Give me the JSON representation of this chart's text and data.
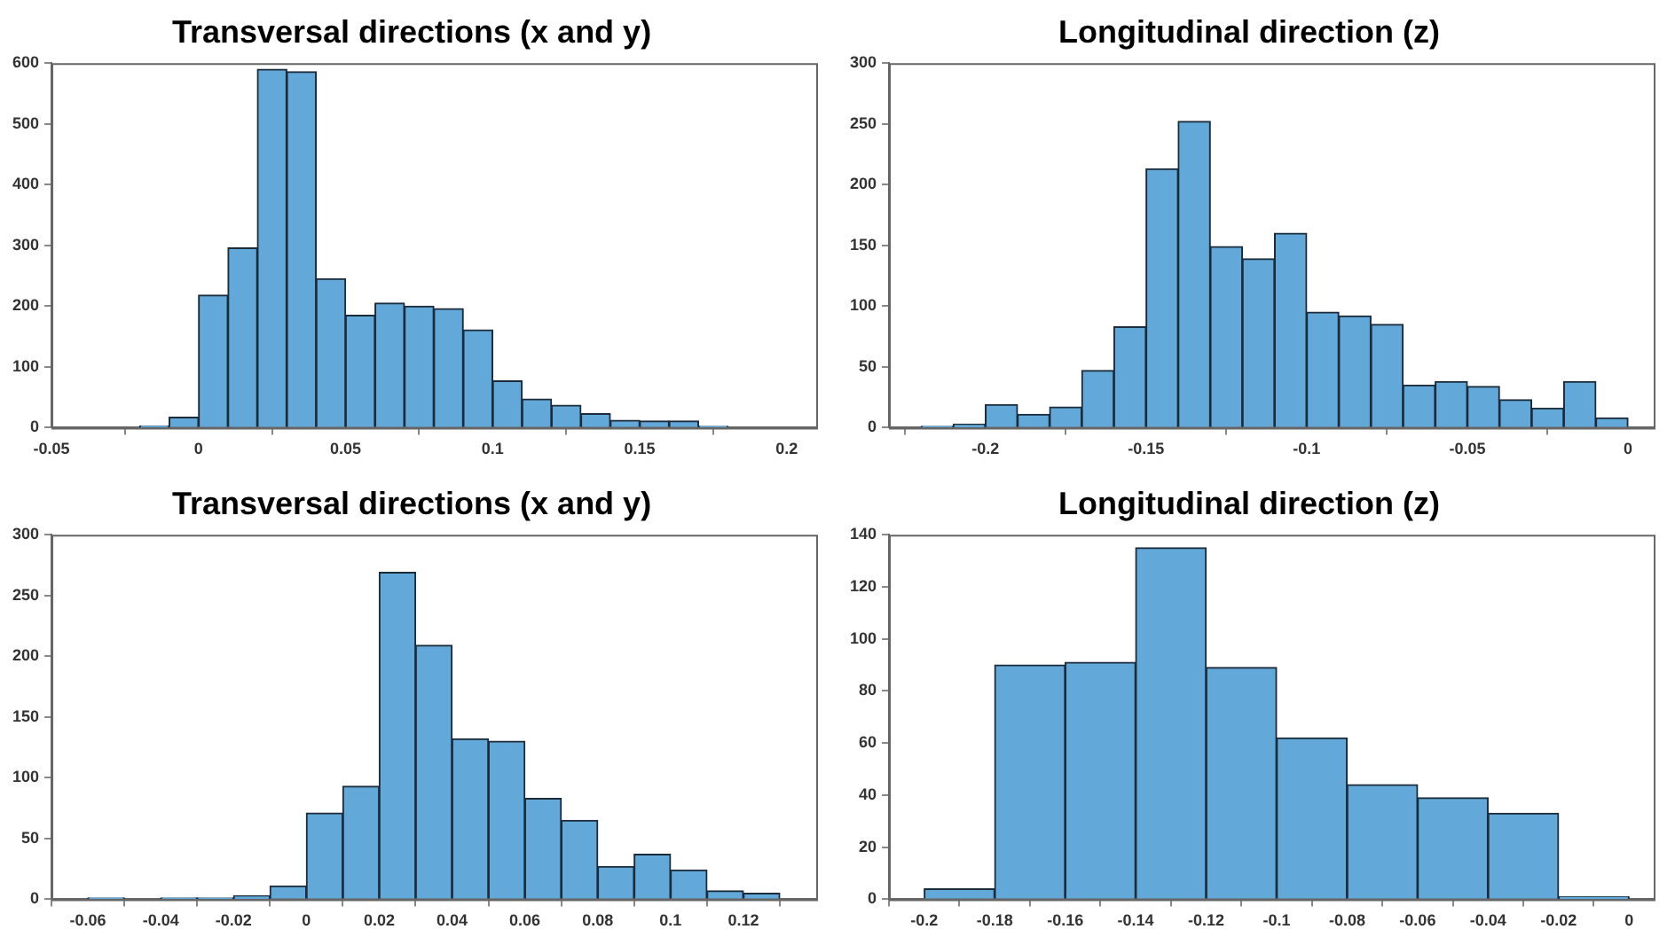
{
  "chart_data": [
    {
      "type": "histogram",
      "title": "Transversal directions (x and y)",
      "color": "#62a8d8",
      "bins": [
        -0.02,
        -0.01,
        0,
        0.01,
        0.02,
        0.03,
        0.04,
        0.05,
        0.06,
        0.07,
        0.08,
        0.09,
        0.1,
        0.11,
        0.12,
        0.13,
        0.14,
        0.15,
        0.16,
        0.17,
        0.18
      ],
      "values": [
        3,
        17,
        218,
        296,
        590,
        586,
        245,
        185,
        205,
        200,
        196,
        161,
        77,
        47,
        37,
        23,
        12,
        11,
        11,
        2
      ],
      "xlim": [
        -0.05,
        0.21
      ],
      "xticks": [
        -0.05,
        0,
        0.05,
        0.1,
        0.15,
        0.2
      ],
      "ylim": [
        0,
        600
      ],
      "yticks": [
        0,
        100,
        200,
        300,
        400,
        500,
        600
      ],
      "grid": false,
      "legend": false
    },
    {
      "type": "histogram",
      "title": "Longitudinal direction (z)",
      "color": "#62a8d8",
      "bins": [
        -0.22,
        -0.21,
        -0.2,
        -0.19,
        -0.18,
        -0.17,
        -0.16,
        -0.15,
        -0.14,
        -0.13,
        -0.12,
        -0.11,
        -0.1,
        -0.09,
        -0.08,
        -0.07,
        -0.06,
        -0.05,
        -0.04,
        -0.03,
        -0.02,
        -0.01,
        0
      ],
      "values": [
        1,
        3,
        19,
        11,
        17,
        47,
        83,
        213,
        252,
        149,
        139,
        160,
        95,
        92,
        85,
        35,
        38,
        34,
        23,
        16,
        38,
        8
      ],
      "xlim": [
        -0.23,
        0.008
      ],
      "xticks": [
        -0.2,
        -0.15,
        -0.1,
        -0.05,
        0
      ],
      "ylim": [
        0,
        300
      ],
      "yticks": [
        0,
        50,
        100,
        150,
        200,
        250,
        300
      ],
      "grid": false,
      "legend": false
    },
    {
      "type": "histogram",
      "title": "Transversal directions (x and y)",
      "color": "#62a8d8",
      "bins": [
        -0.06,
        -0.05,
        -0.04,
        -0.03,
        -0.02,
        -0.01,
        0,
        0.01,
        0.02,
        0.03,
        0.04,
        0.05,
        0.06,
        0.07,
        0.08,
        0.09,
        0.1,
        0.11,
        0.12,
        0.13
      ],
      "values": [
        1,
        0,
        1,
        1,
        3,
        11,
        71,
        93,
        269,
        209,
        132,
        130,
        83,
        65,
        27,
        37,
        24,
        7,
        5
      ],
      "xlim": [
        -0.07,
        0.14
      ],
      "xticks": [
        -0.06,
        -0.04,
        -0.02,
        0,
        0.02,
        0.04,
        0.06,
        0.08,
        0.1,
        0.12
      ],
      "ylim": [
        0,
        300
      ],
      "yticks": [
        0,
        50,
        100,
        150,
        200,
        250,
        300
      ],
      "grid": false,
      "legend": false
    },
    {
      "type": "histogram",
      "title": "Longitudinal direction (z)",
      "color": "#62a8d8",
      "bins": [
        -0.2,
        -0.18,
        -0.16,
        -0.14,
        -0.12,
        -0.1,
        -0.08,
        -0.06,
        -0.04,
        -0.02,
        0
      ],
      "values": [
        4,
        90,
        91,
        135,
        89,
        62,
        44,
        39,
        33,
        1
      ],
      "xlim": [
        -0.21,
        0.007
      ],
      "xticks": [
        -0.2,
        -0.18,
        -0.16,
        -0.14,
        -0.12,
        -0.1,
        -0.08,
        -0.06,
        -0.04,
        -0.02,
        0
      ],
      "ylim": [
        0,
        140
      ],
      "yticks": [
        0,
        20,
        40,
        60,
        80,
        100,
        120,
        140
      ],
      "grid": false,
      "legend": false
    }
  ]
}
